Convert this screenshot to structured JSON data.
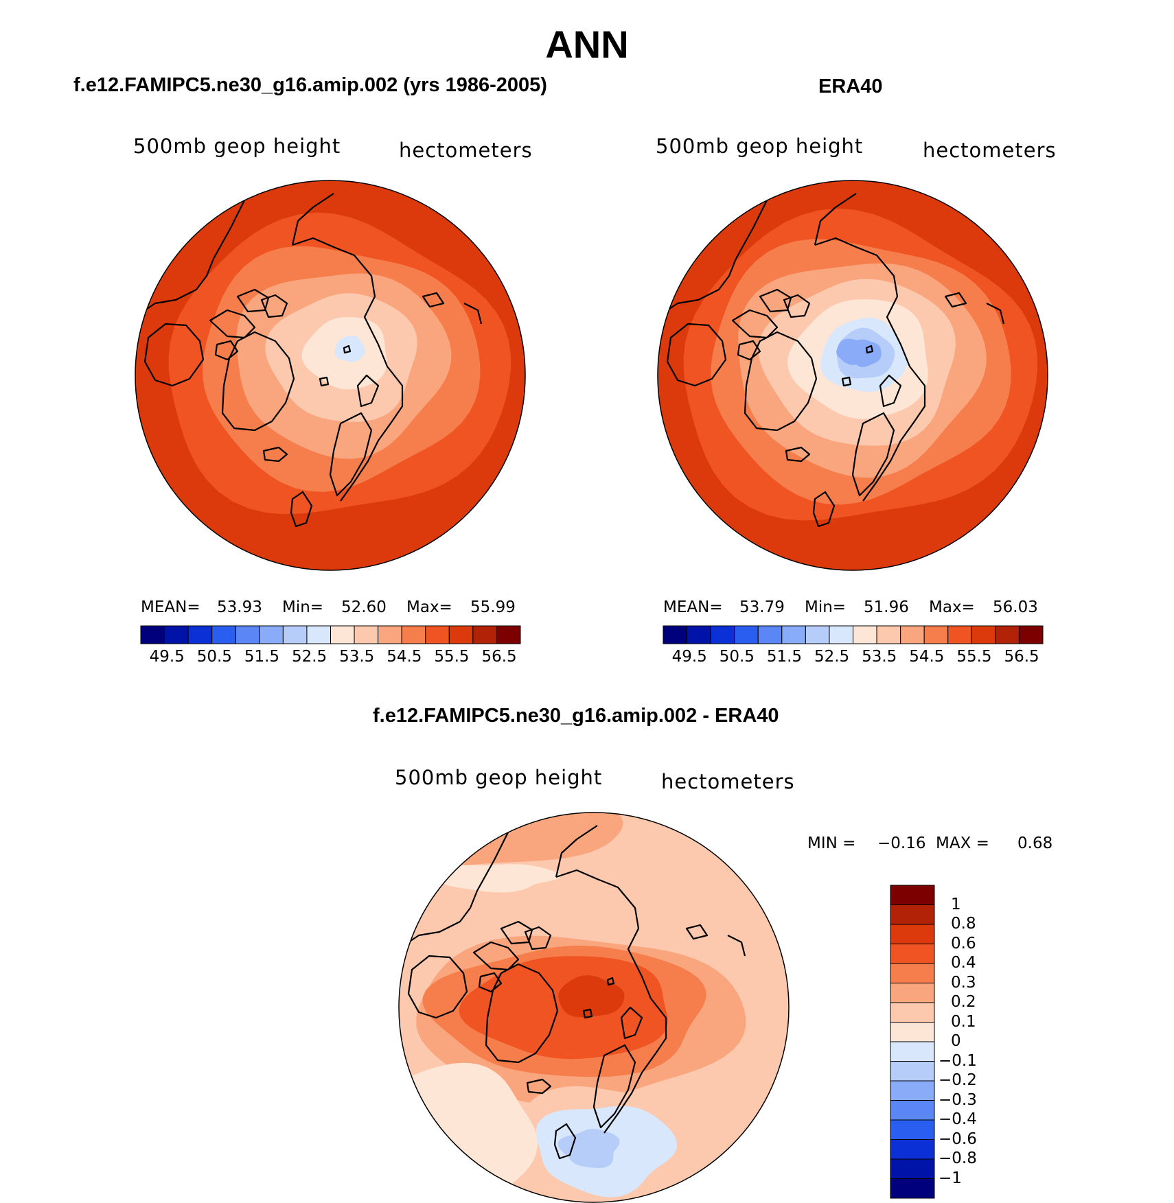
{
  "figure_title": "ANN",
  "panels": {
    "model": {
      "title": "f.e12.FAMIPC5.ne30_g16.amip.002 (yrs 1986-2005)",
      "variable": "500mb  geop  height",
      "units": "hectometers",
      "stats": {
        "mean_label": "MEAN=",
        "mean": "53.93",
        "min_label": "Min=",
        "min": "52.60",
        "max_label": "Max=",
        "max": "55.99"
      }
    },
    "obs": {
      "title": "ERA40",
      "variable": "500mb  geop  height",
      "units": "hectometers",
      "stats": {
        "mean_label": "MEAN=",
        "mean": "53.79",
        "min_label": "Min=",
        "min": "51.96",
        "max_label": "Max=",
        "max": "56.03"
      }
    },
    "diff": {
      "title": "f.e12.FAMIPC5.ne30_g16.amip.002 - ERA40",
      "variable": "500mb  geop  height",
      "units": "hectometers",
      "stats": {
        "min_label": "MIN =",
        "min": "−0.16",
        "max_label": "MAX =",
        "max": "0.68"
      }
    }
  },
  "chart_data": [
    {
      "type": "contour-map",
      "projection": "north-polar-stereographic",
      "panel": "model",
      "field": "500mb geopotential height",
      "units": "hectometers",
      "mean": 53.93,
      "min": 52.6,
      "max": 55.99,
      "colorbar": {
        "orientation": "horizontal",
        "levels": [
          49.5,
          50.5,
          51.5,
          52.5,
          53.5,
          54.5,
          55.5,
          56.5
        ],
        "level_labels": [
          "49.5",
          "50.5",
          "51.5",
          "52.5",
          "53.5",
          "54.5",
          "55.5",
          "56.5"
        ],
        "colors": [
          "#00007d",
          "#0013a8",
          "#0a30d6",
          "#2a5ef0",
          "#5a87f5",
          "#8aabf7",
          "#b6ccf9",
          "#d8e7fb",
          "#fde6d6",
          "#fcc8ae",
          "#f9a67e",
          "#f67e4c",
          "#f05423",
          "#dc3a0c",
          "#b22206",
          "#7d0000"
        ]
      },
      "contour_rings": [
        {
          "value": 52.75,
          "color": "#d8e7fb"
        },
        {
          "value": 53.25,
          "color": "#fde6d6"
        },
        {
          "value": 53.75,
          "color": "#fcc8ae"
        },
        {
          "value": 54.25,
          "color": "#f9a67e"
        },
        {
          "value": 54.75,
          "color": "#f67e4c"
        },
        {
          "value": 55.25,
          "color": "#f05423"
        },
        {
          "value": 55.75,
          "color": "#dc3a0c"
        }
      ]
    },
    {
      "type": "contour-map",
      "projection": "north-polar-stereographic",
      "panel": "obs",
      "field": "500mb geopotential height",
      "units": "hectometers",
      "mean": 53.79,
      "min": 51.96,
      "max": 56.03,
      "colorbar": {
        "orientation": "horizontal",
        "levels": [
          49.5,
          50.5,
          51.5,
          52.5,
          53.5,
          54.5,
          55.5,
          56.5
        ],
        "level_labels": [
          "49.5",
          "50.5",
          "51.5",
          "52.5",
          "53.5",
          "54.5",
          "55.5",
          "56.5"
        ],
        "colors": [
          "#00007d",
          "#0013a8",
          "#0a30d6",
          "#2a5ef0",
          "#5a87f5",
          "#8aabf7",
          "#b6ccf9",
          "#d8e7fb",
          "#fde6d6",
          "#fcc8ae",
          "#f9a67e",
          "#f67e4c",
          "#f05423",
          "#dc3a0c",
          "#b22206",
          "#7d0000"
        ]
      },
      "contour_rings": [
        {
          "value": 52.25,
          "color": "#8aabf7"
        },
        {
          "value": 52.5,
          "color": "#b6ccf9"
        },
        {
          "value": 52.75,
          "color": "#d8e7fb"
        },
        {
          "value": 53.25,
          "color": "#fde6d6"
        },
        {
          "value": 53.75,
          "color": "#fcc8ae"
        },
        {
          "value": 54.25,
          "color": "#f9a67e"
        },
        {
          "value": 54.75,
          "color": "#f67e4c"
        },
        {
          "value": 55.25,
          "color": "#f05423"
        },
        {
          "value": 55.75,
          "color": "#dc3a0c"
        }
      ]
    },
    {
      "type": "contour-map",
      "projection": "north-polar-stereographic",
      "panel": "diff",
      "field": "500mb geopotential height difference",
      "units": "hectometers",
      "min": -0.16,
      "max": 0.68,
      "colorbar": {
        "orientation": "vertical",
        "levels": [
          1,
          0.8,
          0.6,
          0.4,
          0.3,
          0.2,
          0.1,
          0,
          -0.1,
          -0.2,
          -0.3,
          -0.4,
          -0.6,
          -0.8,
          -1
        ],
        "level_labels": [
          "1",
          "0.8",
          "0.6",
          "0.4",
          "0.3",
          "0.2",
          "0.1",
          "0",
          "−0.1",
          "−0.2",
          "−0.3",
          "−0.4",
          "−0.6",
          "−0.8",
          "−1"
        ],
        "colors": [
          "#7d0000",
          "#b22206",
          "#dc3a0c",
          "#f05423",
          "#f67e4c",
          "#f9a67e",
          "#fcc8ae",
          "#fde6d6",
          "#d8e7fb",
          "#b6ccf9",
          "#8aabf7",
          "#5a87f5",
          "#2a5ef0",
          "#0a30d6",
          "#0013a8",
          "#00007d"
        ]
      }
    }
  ]
}
